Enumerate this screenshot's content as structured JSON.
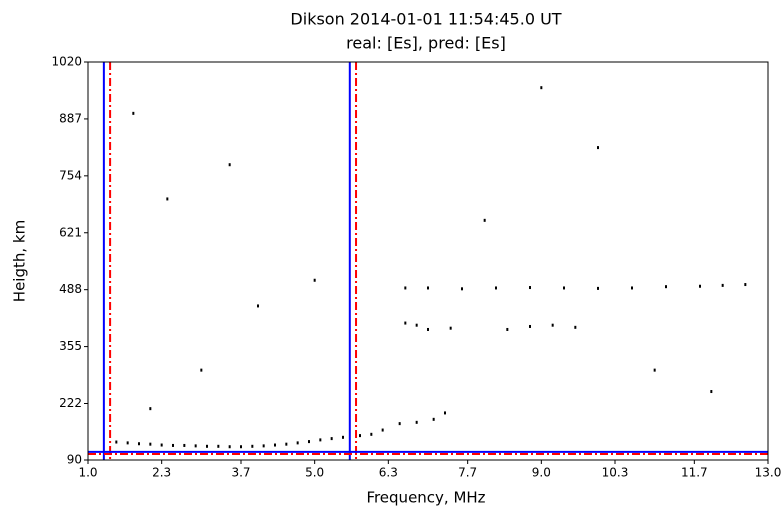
{
  "chart_data": {
    "type": "scatter",
    "title": "Dikson 2014-01-01 11:54:45.0 UT",
    "subtitle": "real: [Es], pred: [Es]",
    "x_label": "Frequency, MHz",
    "y_label": "Heigth, km",
    "xlim": [
      1.0,
      13.0
    ],
    "ylim": [
      90,
      1020
    ],
    "xticks": [
      {
        "value": 1.0,
        "label": "1.0"
      },
      2.3,
      3.7,
      {
        "value": 5.0,
        "label": "5.0"
      },
      6.3,
      7.7,
      {
        "value": 9.0,
        "label": "9.0"
      },
      10.3,
      11.7,
      {
        "value": 13.0,
        "label": "13.0"
      }
    ],
    "yticks": [
      90,
      222,
      355,
      488,
      621,
      754,
      887,
      1020
    ],
    "point_color": "#000000",
    "x": [
      1.5,
      1.7,
      1.9,
      2.1,
      2.3,
      2.5,
      2.7,
      2.9,
      3.1,
      3.3,
      3.5,
      3.7,
      3.9,
      4.1,
      4.3,
      4.5,
      4.7,
      4.9,
      5.1,
      5.3,
      5.5,
      5.8,
      6.0,
      6.2,
      6.5,
      6.8,
      7.1,
      7.3,
      6.6,
      6.8,
      7.0,
      7.4,
      8.4,
      8.8,
      9.2,
      9.6,
      6.6,
      7.0,
      7.6,
      8.2,
      8.8,
      9.4,
      10.0,
      10.6,
      11.2,
      11.8,
      12.2,
      12.6,
      2.1,
      3.0,
      4.0,
      5.0,
      2.4,
      3.5,
      1.8,
      8.0,
      10.0,
      11.0,
      12.0,
      9.0
    ],
    "y": [
      132,
      130,
      128,
      127,
      125,
      124,
      124,
      123,
      122,
      122,
      121,
      121,
      122,
      123,
      125,
      127,
      130,
      133,
      137,
      140,
      143,
      147,
      150,
      160,
      175,
      178,
      185,
      200,
      410,
      405,
      395,
      398,
      395,
      402,
      405,
      400,
      492,
      492,
      490,
      492,
      493,
      492,
      491,
      492,
      495,
      496,
      498,
      500,
      210,
      300,
      450,
      510,
      700,
      780,
      900,
      650,
      820,
      300,
      250,
      960
    ],
    "vlines": [
      {
        "x": 1.28,
        "color": "#0000ff",
        "style": "solid"
      },
      {
        "x": 1.39,
        "color": "#ff0000",
        "style": "dashdot"
      },
      {
        "x": 5.62,
        "color": "#0000ff",
        "style": "solid"
      },
      {
        "x": 5.73,
        "color": "#ff0000",
        "style": "dashdot"
      }
    ],
    "hlines": [
      {
        "y": 109,
        "color": "#0000ff",
        "style": "solid"
      },
      {
        "y": 104,
        "color": "#ff0000",
        "style": "dashdot"
      }
    ]
  }
}
